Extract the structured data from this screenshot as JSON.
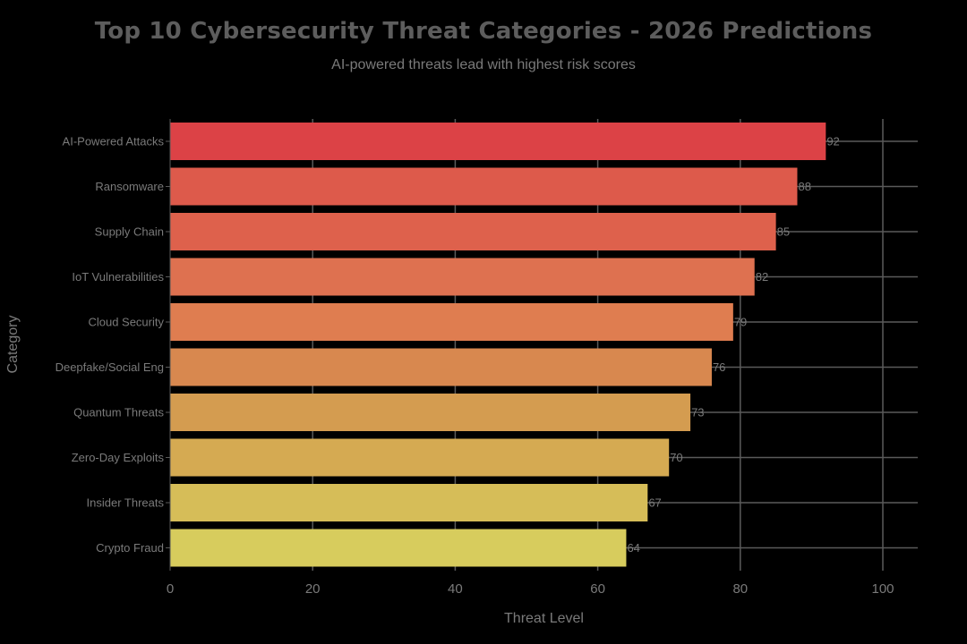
{
  "chart_data": {
    "type": "bar",
    "orientation": "horizontal",
    "title": "Top 10 Cybersecurity Threat Categories - 2026 Predictions",
    "subtitle": "AI-powered threats lead with highest risk scores",
    "categories": [
      "AI-Powered Attacks",
      "Ransomware",
      "Supply Chain",
      "IoT Vulnerabilities",
      "Cloud Security",
      "Deepfake/Social Eng",
      "Quantum Threats",
      "Zero-Day Exploits",
      "Insider Threats",
      "Crypto Fraud"
    ],
    "values": [
      92,
      88,
      85,
      82,
      79,
      76,
      73,
      70,
      67,
      64
    ],
    "xlabel": "Threat Level",
    "ylabel": "Category",
    "xlim": [
      0,
      105
    ],
    "xticks": [
      0,
      20,
      40,
      60,
      80,
      100
    ],
    "grid": true,
    "colors": [
      "#dc4246",
      "#dd5a4b",
      "#de614c",
      "#de7150",
      "#df7d50",
      "#d8884f",
      "#d49c50",
      "#d5aa52",
      "#d6bd58",
      "#d7cc5d"
    ]
  }
}
